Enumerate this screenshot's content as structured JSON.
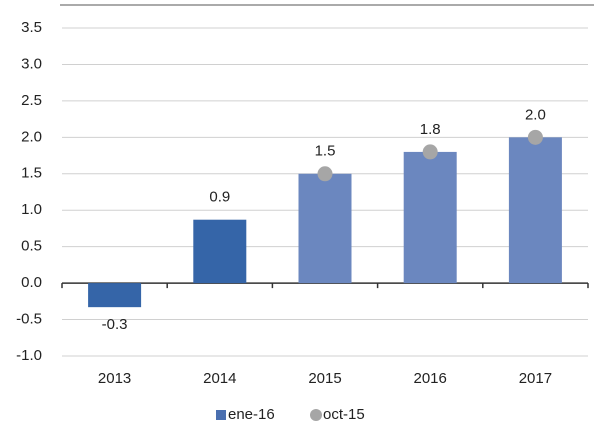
{
  "chart_data": {
    "type": "bar",
    "categories": [
      "2013",
      "2014",
      "2015",
      "2016",
      "2017"
    ],
    "series": [
      {
        "name": "ene-16",
        "type": "bar",
        "color": "#4a6fb0",
        "colors": [
          "#3565a8",
          "#3565a8",
          "#6b87bf",
          "#6b87bf",
          "#6b87bf"
        ],
        "values": [
          -0.33,
          0.87,
          1.5,
          1.8,
          2.0
        ],
        "value_labels": [
          "-0.3",
          "0.9",
          "1.5",
          "1.8",
          "2.0"
        ]
      },
      {
        "name": "oct-15",
        "type": "scatter",
        "color": "#a6a6a6",
        "values": [
          null,
          null,
          1.5,
          1.8,
          2.0
        ]
      }
    ],
    "ylim": [
      -1,
      3.5
    ],
    "yticks": [
      {
        "value": -1,
        "label": "-1.0"
      },
      -0.5,
      {
        "value": 0,
        "label": "0.0"
      },
      0.5,
      {
        "value": 1,
        "label": "1.0"
      },
      1.5,
      {
        "value": 2,
        "label": "2.0"
      },
      2.5,
      {
        "value": 3,
        "label": "3.0"
      },
      3.5
    ],
    "grid": true,
    "legend": "bottom"
  }
}
